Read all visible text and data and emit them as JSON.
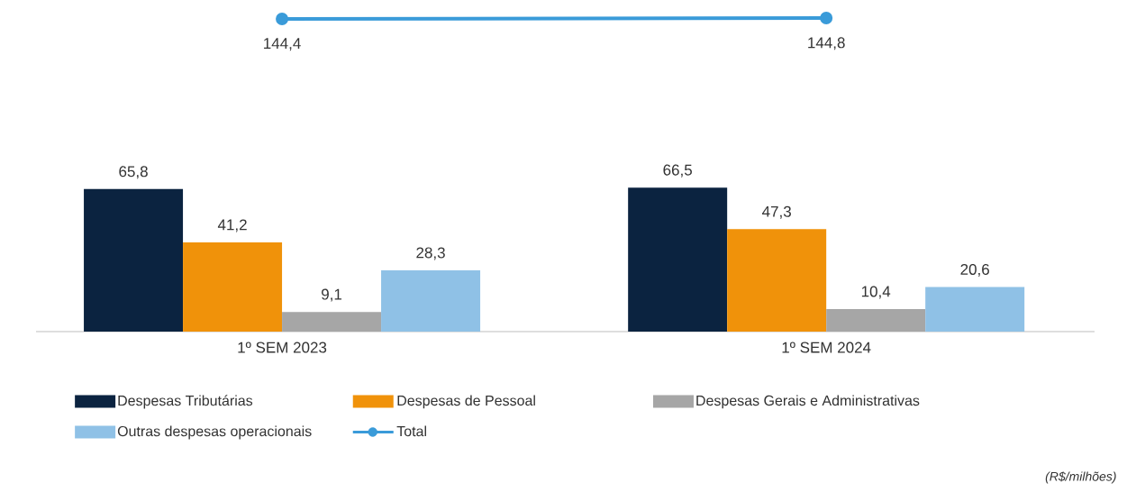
{
  "chart_data": {
    "type": "bar",
    "categories": [
      "1º SEM 2023",
      "1º SEM 2024"
    ],
    "series": [
      {
        "name": "Despesas Tributárias",
        "color": "#0b2340",
        "values": [
          65.8,
          66.5
        ],
        "value_labels": [
          "65,8",
          "66,5"
        ]
      },
      {
        "name": "Despesas de Pessoal",
        "color": "#f0920a",
        "values": [
          41.2,
          47.3
        ],
        "value_labels": [
          "41,2",
          "47,3"
        ]
      },
      {
        "name": "Despesas Gerais e Administrativas",
        "color": "#a6a6a6",
        "values": [
          9.1,
          10.4
        ],
        "value_labels": [
          "9,1",
          "10,4"
        ]
      },
      {
        "name": "Outras despesas operacionais",
        "color": "#8fc1e6",
        "values": [
          28.3,
          20.6
        ],
        "value_labels": [
          "28,3",
          "20,6"
        ]
      },
      {
        "name": "Total",
        "type": "line",
        "marker": "circle",
        "color": "#3a9bd9",
        "values": [
          144.4,
          144.8
        ],
        "value_labels": [
          "144,4",
          "144,8"
        ]
      }
    ],
    "tick_labels": "x",
    "legend": "bottom",
    "annotations": [
      "(R$/milhões)"
    ]
  }
}
